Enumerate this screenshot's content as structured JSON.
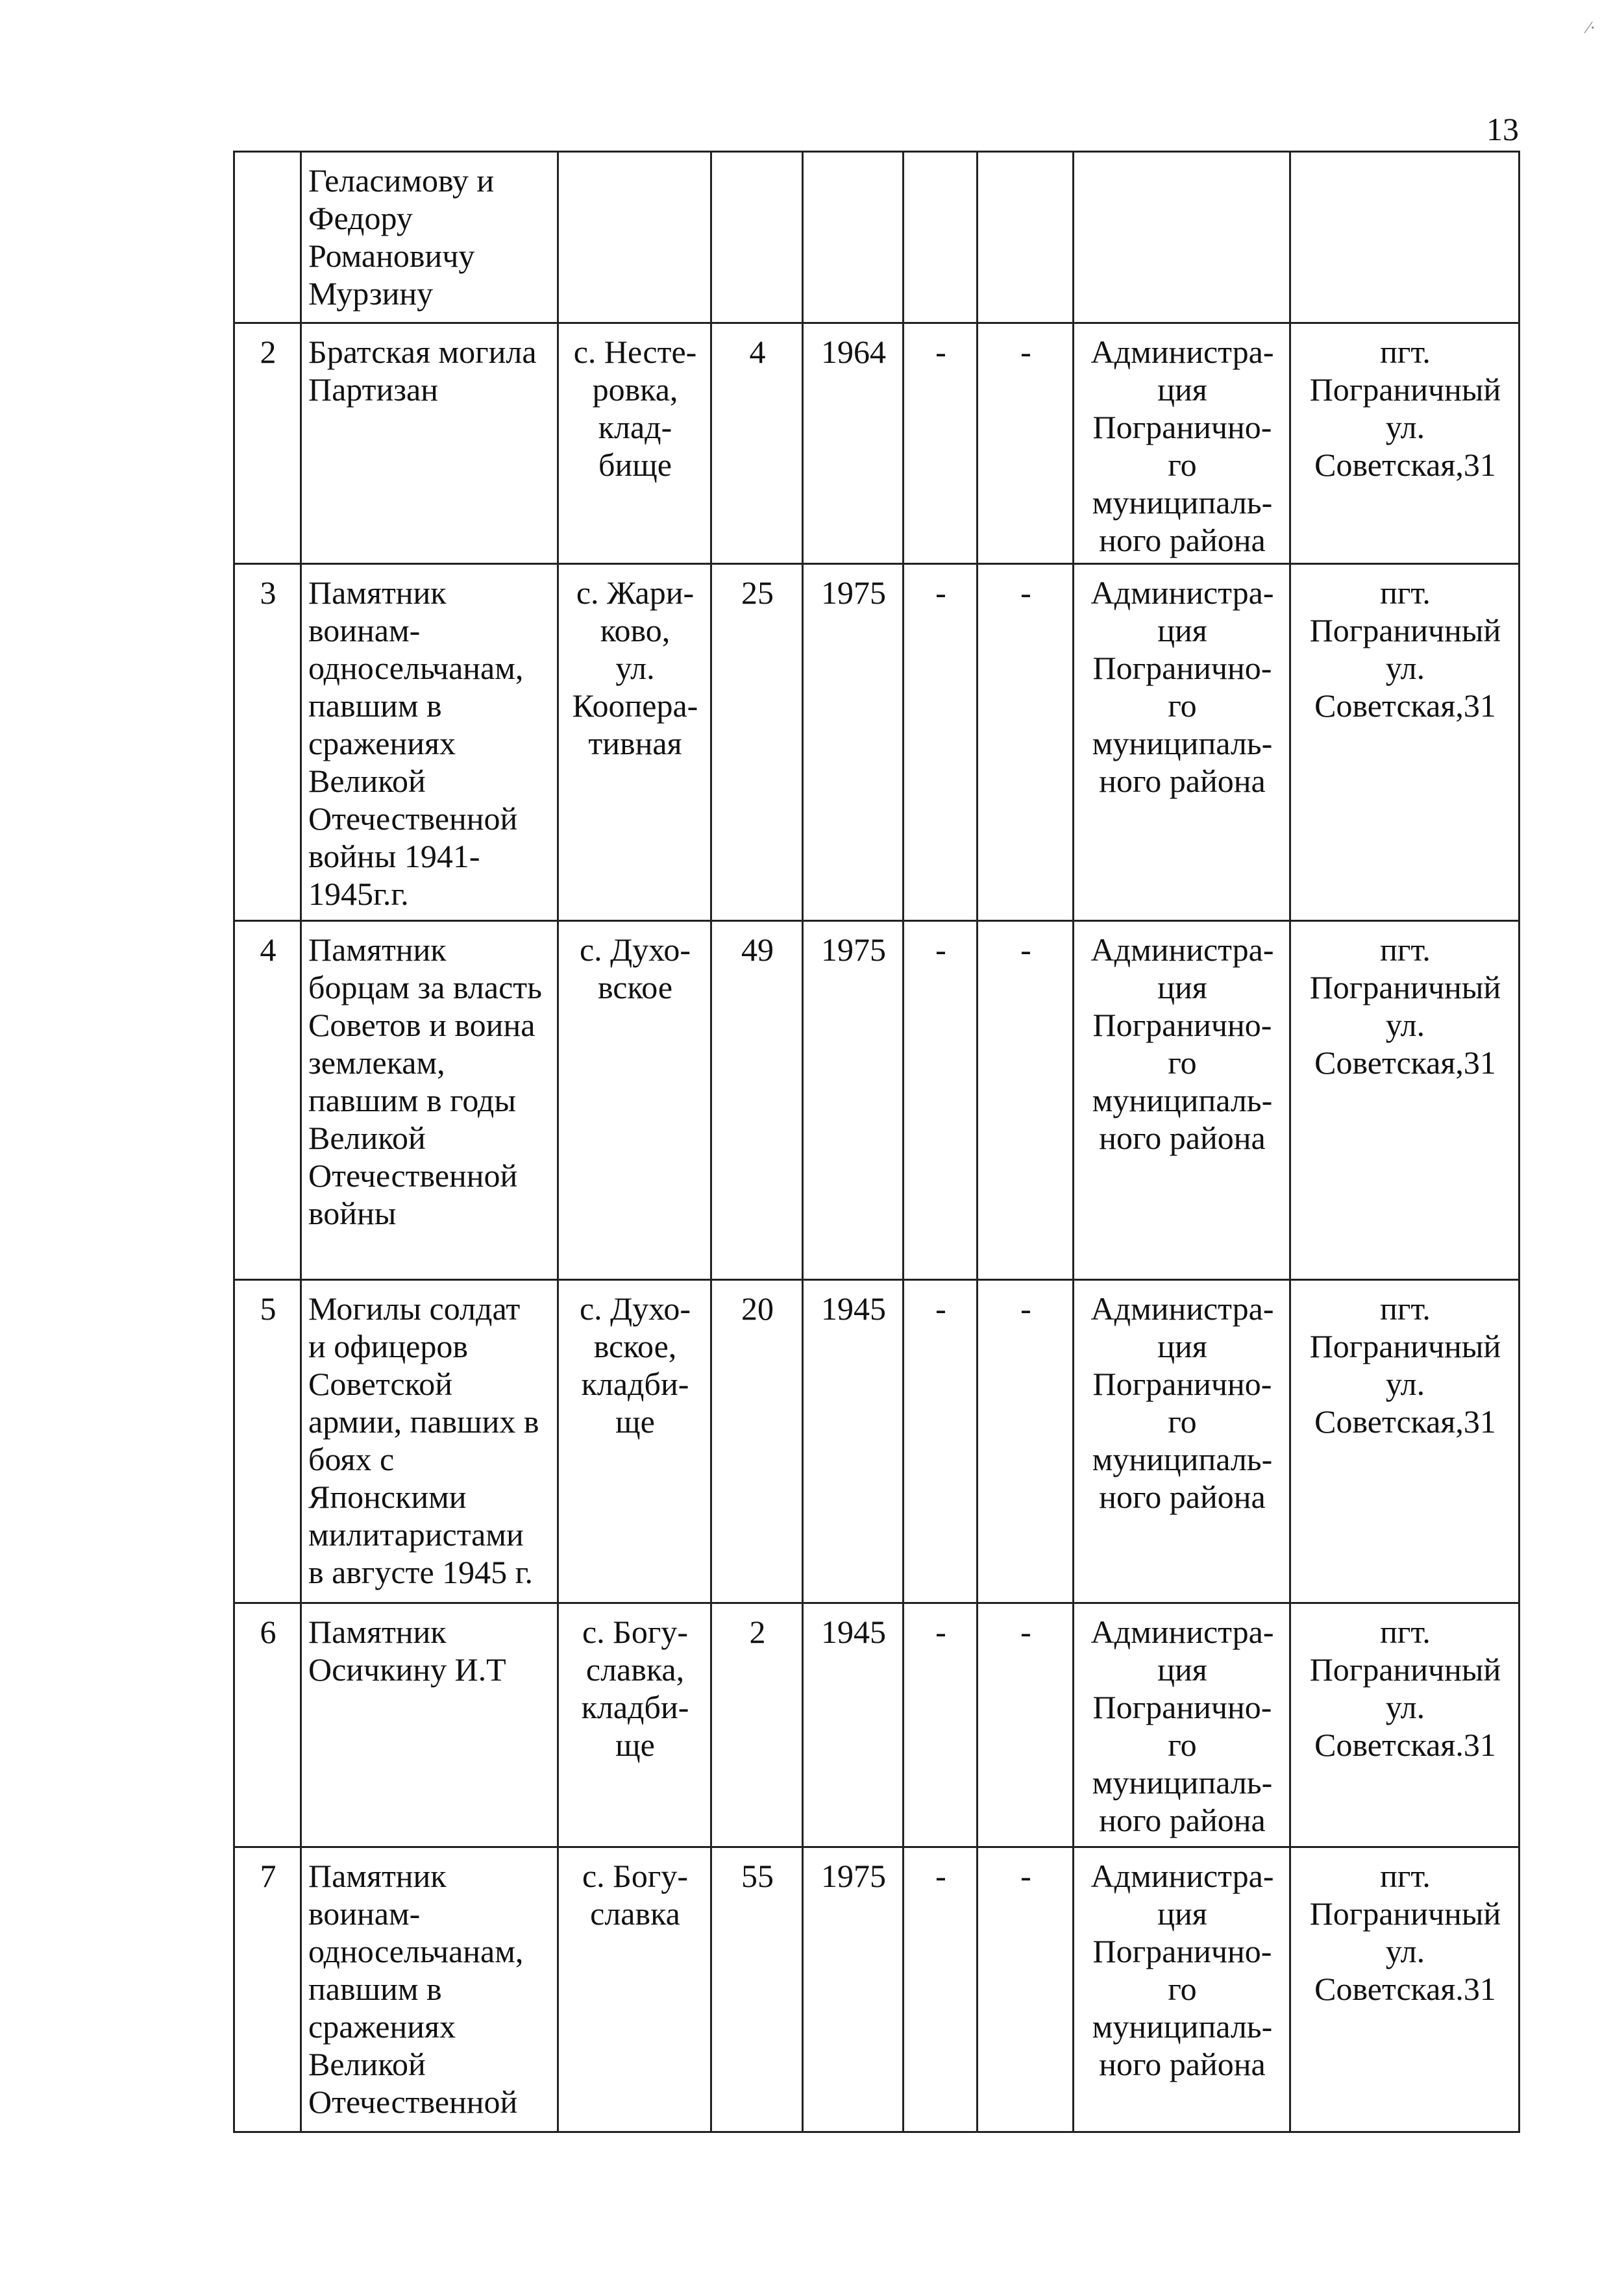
{
  "page_number": "13",
  "corner_mark": "⁄·",
  "table": {
    "rows": [
      {
        "num": "",
        "name": "Геласимову и\nФедору\nРомановичу\nМурзину",
        "place": "",
        "count": "",
        "year": "",
        "c6": "",
        "c7": "",
        "owner": "",
        "address": ""
      },
      {
        "num": "2",
        "name": "Братская могила\nПартизан",
        "place": "с. Несте-\nровка,\nклад-\nбище",
        "count": "4",
        "year": "1964",
        "c6": "-",
        "c7": "-",
        "owner": "Администра-\nция\nПогранично-\nго\nмуниципаль-\nного района",
        "address": "пгт.\nПограничный\nул.\nСоветская,31"
      },
      {
        "num": "3",
        "name": "Памятник\nвоинам-\nодносельчанам,\nпавшим в\nсражениях\nВеликой\nОтечественной\nвойны 1941-\n1945г.г.",
        "place": "с. Жари-\nково,\nул.\nКоопера-\nтивная",
        "count": "25",
        "year": "1975",
        "c6": "-",
        "c7": "-",
        "owner": "Администра-\nция\nПогранично-\nго\nмуниципаль-\nного района",
        "address": "пгт.\nПограничный\nул.\nСоветская,31"
      },
      {
        "num": "4",
        "name": " Памятник\nборцам за власть\nСоветов и воина\nземлекам,\nпавшим в годы\nВеликой\nОтечественной\nвойны",
        "place": "с. Духо-\nвское",
        "count": "49",
        "year": "1975",
        "c6": "-",
        "c7": "-",
        "owner": "Администра-\nция\nПогранично-\nго\nмуниципаль-\nного района",
        "address": "пгт.\nПограничный\nул.\nСоветская,31"
      },
      {
        "num": "5",
        "name": "Могилы солдат\nи офицеров\nСоветской\nармии, павших в\nбоях с\nЯпонскими\nмилитаристами\nв августе 1945 г.",
        "place": "с. Духо-\nвское,\nкладби-\nще",
        "count": "20",
        "year": "1945",
        "c6": "-",
        "c7": "-",
        "owner": "Администра-\nция\nПогранично-\nго\nмуниципаль-\nного района",
        "address": "пгт.\nПограничный\nул.\nСоветская,31"
      },
      {
        "num": "6",
        "name": "Памятник\nОсичкину И.Т",
        "place": "с. Богу-\nславка,\nкладби-\nще",
        "count": "2",
        "year": "1945",
        "c6": "-",
        "c7": "-",
        "owner": "Администра-\nция\nПогранично-\nго\nмуниципаль-\nного района",
        "address": "пгт.\nПограничный\nул.\nСоветская.31"
      },
      {
        "num": "7",
        "name": "Памятник\nвоинам-\nодносельчанам,\nпавшим в\nсражениях\nВеликой\nОтечественной",
        "place": "с. Богу-\nславка",
        "count": "55",
        "year": "1975",
        "c6": "-",
        "c7": "-",
        "owner": "Администра-\nция\nПогранично-\nго\nмуниципаль-\nного района",
        "address": "пгт.\nПограничный\nул.\nСоветская.31"
      }
    ]
  }
}
